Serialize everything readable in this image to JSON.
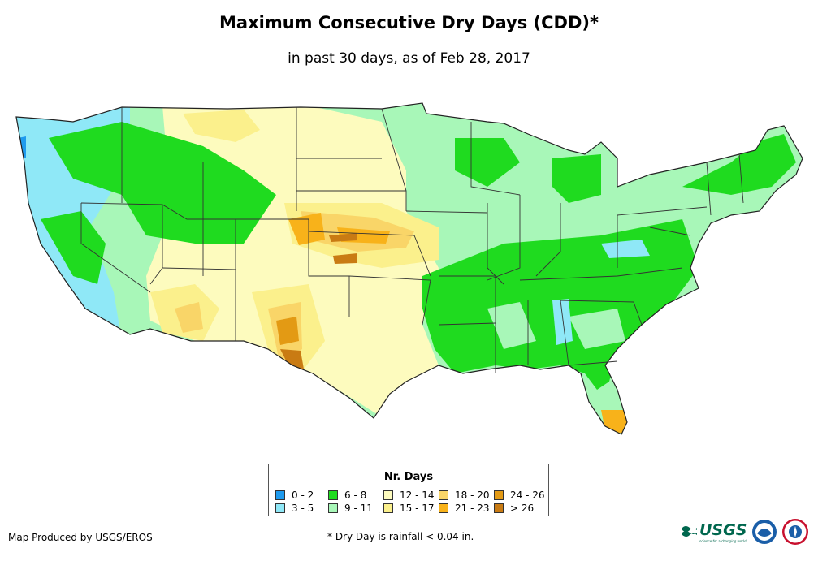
{
  "title": "Maximum Consecutive Dry Days (CDD)*",
  "subtitle": "in past 30 days, as of Feb 28, 2017",
  "legend": {
    "title": "Nr. Days",
    "items": [
      {
        "label": "0 - 2",
        "color": "#1f9bee"
      },
      {
        "label": "3 - 5",
        "color": "#8fe8f7"
      },
      {
        "label": "6 - 8",
        "color": "#1fdb1f"
      },
      {
        "label": "9 - 11",
        "color": "#a8f7b8"
      },
      {
        "label": "12 - 14",
        "color": "#fdfbbe"
      },
      {
        "label": "15 - 17",
        "color": "#fbf08c"
      },
      {
        "label": "18 - 20",
        "color": "#f9d568"
      },
      {
        "label": "21 - 23",
        "color": "#f8b21a"
      },
      {
        "label": "24 - 26",
        "color": "#e39a14"
      },
      {
        "label": "> 26",
        "color": "#c97b13"
      }
    ]
  },
  "footer": {
    "producer": "Map Produced by USGS/EROS",
    "footnote": "* Dry Day is rainfall < 0.04 in."
  },
  "logos": {
    "usgs_text": "USGS",
    "usgs_tagline": "science for a changing world"
  }
}
